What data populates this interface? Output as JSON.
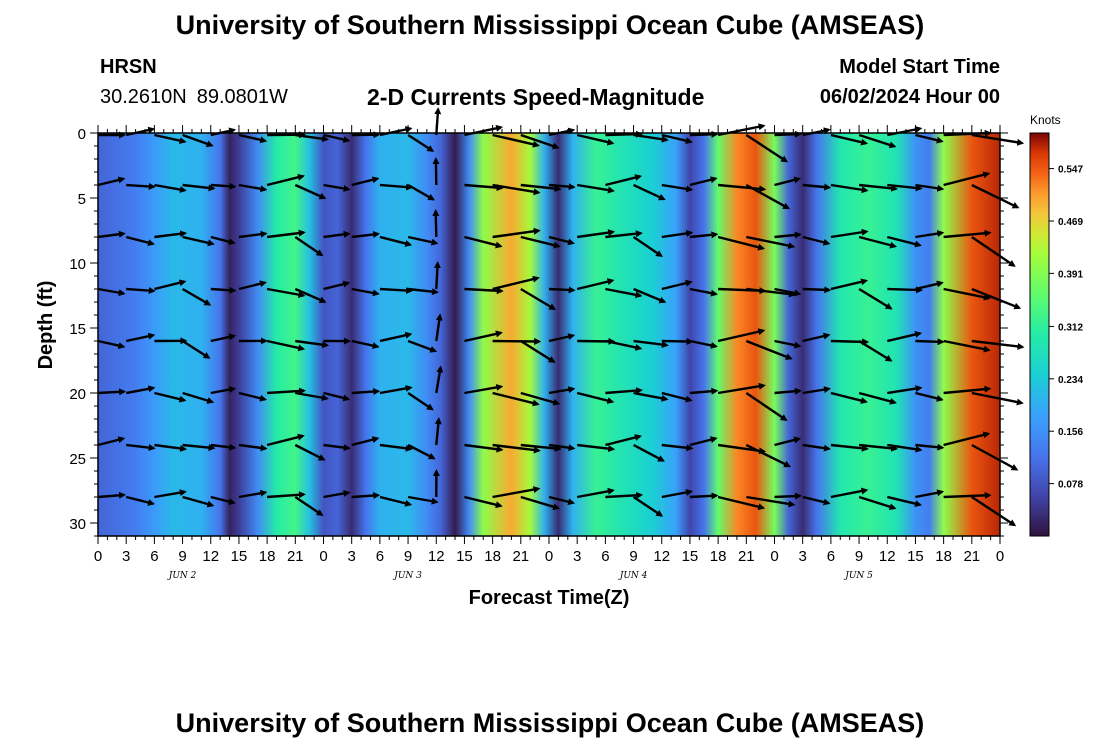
{
  "header": {
    "title": "University of Southern Mississippi Ocean Cube (AMSEAS)",
    "station": "HRSN",
    "lat": "30.2610N",
    "lon": "89.0801W",
    "subtitle": "2-D Currents Speed-Magnitude",
    "model_start_label": "Model Start Time",
    "model_start_value": "06/02/2024 Hour 00"
  },
  "footer": {
    "title": "University of Southern Mississippi Ocean Cube (AMSEAS)"
  },
  "chart_data": {
    "type": "heatmap",
    "title": "2-D Currents Speed-Magnitude",
    "xlabel": "Forecast Time(Z)",
    "ylabel": "Depth (ft)",
    "x_range_hours": [
      0,
      96
    ],
    "y_range_ft": [
      0,
      31
    ],
    "x_tick_labels": [
      "0",
      "3",
      "6",
      "9",
      "12",
      "15",
      "18",
      "21",
      "0",
      "3",
      "6",
      "9",
      "12",
      "15",
      "18",
      "21",
      "0",
      "3",
      "6",
      "9",
      "12",
      "15",
      "18",
      "21",
      "0",
      "3",
      "6",
      "9",
      "12",
      "15",
      "18",
      "21",
      "0"
    ],
    "y_ticks": [
      0,
      5,
      10,
      15,
      20,
      25,
      30
    ],
    "day_labels": [
      {
        "label": "JUN 2",
        "hour": 9
      },
      {
        "label": "JUN 3",
        "hour": 33
      },
      {
        "label": "JUN 4",
        "hour": 57
      },
      {
        "label": "JUN 5",
        "hour": 81
      }
    ],
    "colorbar": {
      "unit": "Knots",
      "ticks": [
        "0.547",
        "0.469",
        "0.391",
        "0.312",
        "0.234",
        "0.156",
        "0.078"
      ],
      "tick_values": [
        0.547,
        0.469,
        0.391,
        0.312,
        0.234,
        0.156,
        0.078
      ],
      "range": [
        0,
        0.6
      ]
    },
    "speed_profile_surface_knots": [
      {
        "hour": 0,
        "speed": 0.1
      },
      {
        "hour": 4,
        "speed": 0.13
      },
      {
        "hour": 6,
        "speed": 0.17
      },
      {
        "hour": 8,
        "speed": 0.21
      },
      {
        "hour": 11,
        "speed": 0.2
      },
      {
        "hour": 13,
        "speed": 0.12
      },
      {
        "hour": 14,
        "speed": 0.02
      },
      {
        "hour": 15,
        "speed": 0.05
      },
      {
        "hour": 17,
        "speed": 0.15
      },
      {
        "hour": 19,
        "speed": 0.3
      },
      {
        "hour": 21,
        "speed": 0.33
      },
      {
        "hour": 22.5,
        "speed": 0.22
      },
      {
        "hour": 24,
        "speed": 0.08
      },
      {
        "hour": 25.5,
        "speed": 0.1
      },
      {
        "hour": 27,
        "speed": 0.03
      },
      {
        "hour": 28.5,
        "speed": 0.12
      },
      {
        "hour": 30,
        "speed": 0.2
      },
      {
        "hour": 33,
        "speed": 0.21
      },
      {
        "hour": 35,
        "speed": 0.15
      },
      {
        "hour": 36.5,
        "speed": 0.1
      },
      {
        "hour": 38,
        "speed": 0.01
      },
      {
        "hour": 39.5,
        "speed": 0.15
      },
      {
        "hour": 41,
        "speed": 0.4
      },
      {
        "hour": 44,
        "speed": 0.5
      },
      {
        "hour": 46,
        "speed": 0.42
      },
      {
        "hour": 47.5,
        "speed": 0.2
      },
      {
        "hour": 49,
        "speed": 0.03
      },
      {
        "hour": 50.5,
        "speed": 0.2
      },
      {
        "hour": 53,
        "speed": 0.32
      },
      {
        "hour": 56,
        "speed": 0.28
      },
      {
        "hour": 59,
        "speed": 0.24
      },
      {
        "hour": 61.5,
        "speed": 0.18
      },
      {
        "hour": 63,
        "speed": 0.06
      },
      {
        "hour": 64.5,
        "speed": 0.12
      },
      {
        "hour": 66,
        "speed": 0.36
      },
      {
        "hour": 68,
        "speed": 0.52
      },
      {
        "hour": 70,
        "speed": 0.55
      },
      {
        "hour": 72,
        "speed": 0.38
      },
      {
        "hour": 73.5,
        "speed": 0.1
      },
      {
        "hour": 75,
        "speed": 0.03
      },
      {
        "hour": 76.5,
        "speed": 0.12
      },
      {
        "hour": 79,
        "speed": 0.29
      },
      {
        "hour": 82,
        "speed": 0.32
      },
      {
        "hour": 85,
        "speed": 0.28
      },
      {
        "hour": 87,
        "speed": 0.16
      },
      {
        "hour": 88.5,
        "speed": 0.13
      },
      {
        "hour": 90,
        "speed": 0.4
      },
      {
        "hour": 93,
        "speed": 0.55
      },
      {
        "hour": 96,
        "speed": 0.58
      }
    ],
    "vector_depths_ft": [
      0,
      4,
      8,
      12,
      16,
      20,
      24,
      28
    ],
    "vector_hours": [
      0,
      3,
      6,
      9,
      12,
      15,
      18,
      21,
      24,
      27,
      30,
      33,
      36,
      39,
      42,
      45,
      48,
      51,
      54,
      57,
      60,
      63,
      66,
      69,
      72,
      75,
      78,
      81,
      84,
      87,
      90,
      93,
      96
    ]
  }
}
